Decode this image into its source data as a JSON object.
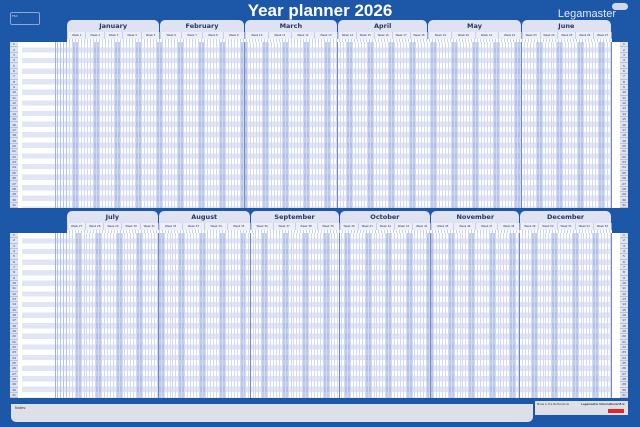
{
  "header": {
    "title": "Year planner 2026",
    "brand": "Legamaster",
    "fsc_label": "FSC"
  },
  "year": 2026,
  "row_numbers": [
    "1",
    "2",
    "3",
    "4",
    "5",
    "6",
    "7",
    "8",
    "9",
    "10",
    "11",
    "12",
    "13",
    "14",
    "15",
    "16",
    "17",
    "18",
    "19",
    "20",
    "21",
    "22",
    "23",
    "24",
    "25",
    "26",
    "27",
    "28",
    "29",
    "30",
    "31"
  ],
  "halves": [
    {
      "months": [
        {
          "name": "January",
          "days": 31,
          "weeks": [
            "Week 1",
            "Week 2",
            "Week 3",
            "Week 4",
            "Week 5"
          ]
        },
        {
          "name": "February",
          "days": 28,
          "weeks": [
            "Week 6",
            "Week 7",
            "Week 8",
            "Week 9"
          ]
        },
        {
          "name": "March",
          "days": 31,
          "weeks": [
            "Week 10",
            "Week 11",
            "Week 12",
            "Week 13"
          ]
        },
        {
          "name": "April",
          "days": 30,
          "weeks": [
            "Week 14",
            "Week 15",
            "Week 16",
            "Week 17",
            "Week 18"
          ]
        },
        {
          "name": "May",
          "days": 31,
          "weeks": [
            "Week 19",
            "Week 20",
            "Week 21",
            "Week 22"
          ]
        },
        {
          "name": "June",
          "days": 30,
          "weeks": [
            "Week 23",
            "Week 24",
            "Week 25",
            "Week 26",
            "Week 27"
          ]
        }
      ]
    },
    {
      "months": [
        {
          "name": "July",
          "days": 31,
          "weeks": [
            "Week 27",
            "Week 28",
            "Week 29",
            "Week 30",
            "Week 31"
          ]
        },
        {
          "name": "August",
          "days": 31,
          "weeks": [
            "Week 32",
            "Week 33",
            "Week 34",
            "Week 35"
          ]
        },
        {
          "name": "September",
          "days": 30,
          "weeks": [
            "Week 36",
            "Week 37",
            "Week 38",
            "Week 39"
          ]
        },
        {
          "name": "October",
          "days": 31,
          "weeks": [
            "Week 40",
            "Week 41",
            "Week 42",
            "Week 43",
            "Week 44"
          ]
        },
        {
          "name": "November",
          "days": 30,
          "weeks": [
            "Week 45",
            "Week 46",
            "Week 47",
            "Week 48"
          ]
        },
        {
          "name": "December",
          "days": 31,
          "weeks": [
            "Week 49",
            "Week 50",
            "Week 51",
            "Week 52",
            "Week 53"
          ]
        }
      ]
    }
  ],
  "footer": {
    "notes_label": "Notes:",
    "made_in": "Made in the Netherlands",
    "company": "Legamaster International B.V."
  },
  "colors": {
    "background": "#1c57a8",
    "weekend": "#a9b8e3",
    "row_alt": "#e2e5f3",
    "tab": "#dfe2f1"
  }
}
